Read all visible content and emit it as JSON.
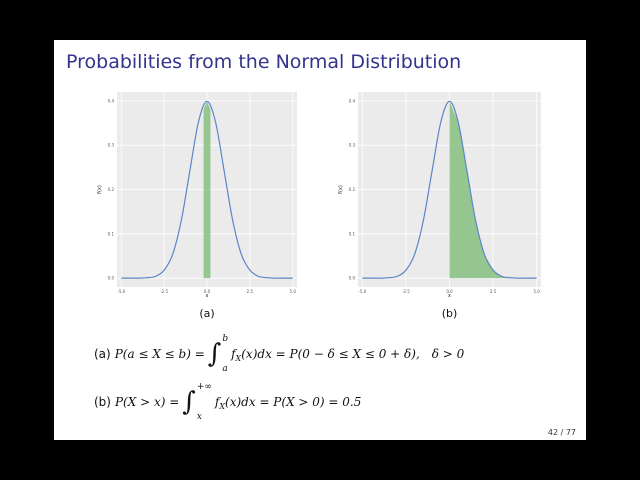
{
  "title": "Probabilities from the Normal Distribution",
  "chart_data": [
    {
      "type": "line",
      "caption": "(a)",
      "x_label": "x",
      "y_label": "f(x)",
      "x": [
        -5,
        -4.5,
        -4,
        -3.5,
        -3,
        -2.5,
        -2,
        -1.5,
        -1,
        -0.5,
        0,
        0.5,
        1,
        1.5,
        2,
        2.5,
        3,
        3.5,
        4,
        4.5,
        5
      ],
      "values": [
        0.0,
        0.0,
        0.0,
        0.001,
        0.004,
        0.018,
        0.054,
        0.13,
        0.242,
        0.352,
        0.399,
        0.352,
        0.242,
        0.13,
        0.054,
        0.018,
        0.004,
        0.001,
        0.0,
        0.0,
        0.0
      ],
      "color": "#5b86c8",
      "shade": {
        "range": [
          -0.2,
          0.2
        ],
        "color": "#86c07f"
      },
      "xlim": [
        -5.25,
        5.25
      ],
      "ylim": [
        -0.02,
        0.42
      ],
      "xticks": [
        {
          "value": -5,
          "label": "-5.0"
        },
        {
          "value": -2.5,
          "label": "-2.5"
        },
        {
          "value": 0,
          "label": "0.0"
        },
        2.5,
        {
          "value": 5,
          "label": "5.0"
        }
      ],
      "yticks": [
        {
          "value": 0,
          "label": "0.0"
        },
        0.1,
        0.2,
        0.3,
        0.4
      ],
      "grid": true
    },
    {
      "type": "line",
      "caption": "(b)",
      "x_label": "x",
      "y_label": "f(x)",
      "x": [
        -5,
        -4.5,
        -4,
        -3.5,
        -3,
        -2.5,
        -2,
        -1.5,
        -1,
        -0.5,
        0,
        0.5,
        1,
        1.5,
        2,
        2.5,
        3,
        3.5,
        4,
        4.5,
        5
      ],
      "values": [
        0.0,
        0.0,
        0.0,
        0.001,
        0.004,
        0.018,
        0.054,
        0.13,
        0.242,
        0.352,
        0.399,
        0.352,
        0.242,
        0.13,
        0.054,
        0.018,
        0.004,
        0.001,
        0.0,
        0.0,
        0.0
      ],
      "color": "#5b86c8",
      "shade": {
        "range": [
          0,
          5
        ],
        "color": "#86c07f"
      },
      "xlim": [
        -5.25,
        5.25
      ],
      "ylim": [
        -0.02,
        0.42
      ],
      "xticks": [
        {
          "value": -5,
          "label": "-5.0"
        },
        {
          "value": -2.5,
          "label": "-2.5"
        },
        {
          "value": 0,
          "label": "0.0"
        },
        2.5,
        {
          "value": 5,
          "label": "5.0"
        }
      ],
      "yticks": [
        {
          "value": 0,
          "label": "0.0"
        },
        0.1,
        0.2,
        0.3,
        0.4
      ],
      "grid": true
    }
  ],
  "equations": [
    {
      "label": "(a)",
      "lhs": "P(a ≤ X ≤ b) =",
      "upper": "b",
      "lower": "a",
      "integrand": "f",
      "sub": "X",
      "rest": "(x)dx = P(0 − δ ≤ X ≤ 0 + δ),",
      "cond": "δ > 0"
    },
    {
      "label": "(b)",
      "lhs": "P(X > x) =",
      "upper": "+∞",
      "lower": "x",
      "integrand": "f",
      "sub": "X",
      "rest": "(x)dx = P(X > 0) = 0.5"
    }
  ],
  "page_number": "42 / 77"
}
